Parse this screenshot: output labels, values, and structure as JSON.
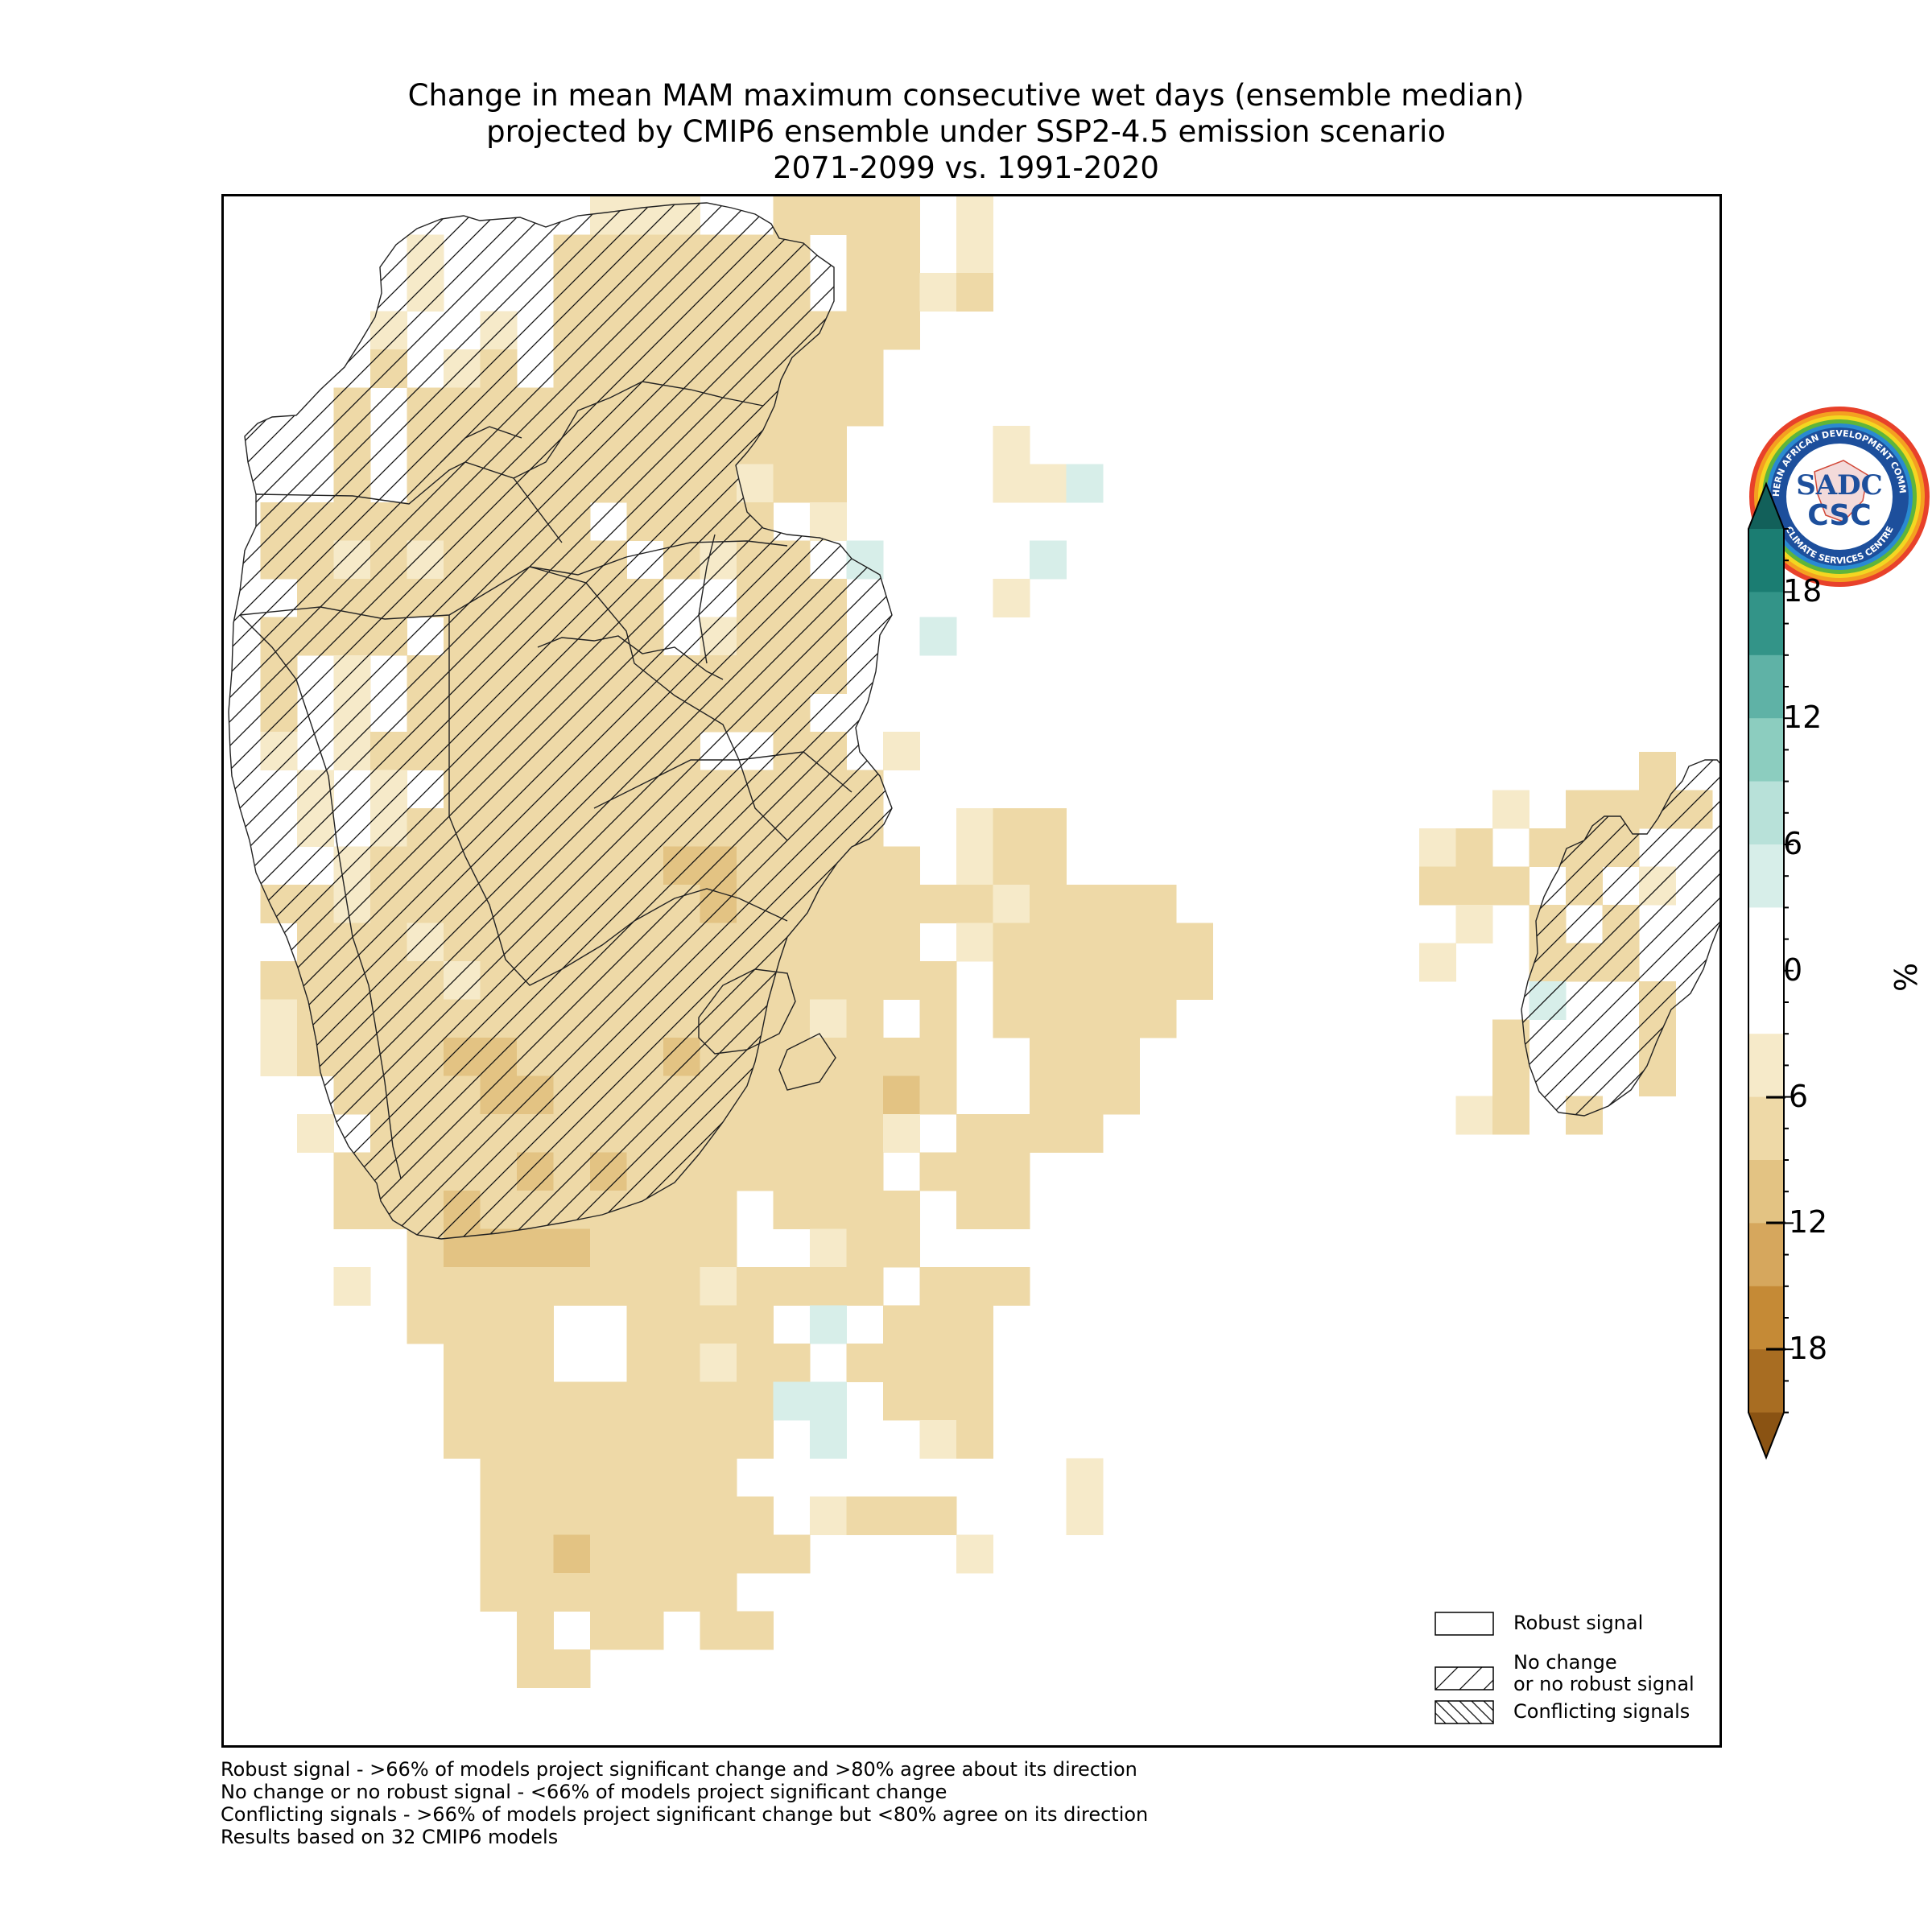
{
  "title": {
    "line1": "Change in mean MAM maximum consecutive wet days (ensemble median)",
    "line2": "projected by CMIP6 ensemble under SSP2-4.5 emission scenario",
    "line3": "2071-2099 vs. 1991-2020"
  },
  "logo": {
    "top_text": "SOUTHERN AFRICAN DEVELOPMENT COMMUNITY",
    "bottom_text": "CLIMATE SERVICES CENTRE",
    "mark_top": "SADC",
    "mark_bottom": "CSC",
    "ring_color": "#e8412a",
    "inner_color": "#1d4f9c"
  },
  "colorbar": {
    "unit": "%",
    "ticks": [
      "18",
      "12",
      "6",
      "0",
      "−6",
      "−12",
      "−18"
    ],
    "colors_top_to_bottom": [
      "#1b7d72",
      "#339488",
      "#5fb2a6",
      "#8ccdbf",
      "#b8e1d9",
      "#d7eee9",
      "#ffffff",
      "#ffffff",
      "#f6eac9",
      "#eed9a7",
      "#e3c383",
      "#d6a75d",
      "#c58a36",
      "#a86d22"
    ],
    "over_color": "#12605a",
    "under_color": "#8a5313"
  },
  "legend": {
    "robust": "Robust signal",
    "no_change_1": "No change",
    "no_change_2": "or no robust signal",
    "conflicting": "Conflicting signals"
  },
  "footnotes": [
    "Robust signal - >66% of models project significant change and >80% agree about its direction",
    "No change or no robust signal - <66% of models project significant change",
    "Conflicting signals - >66% of models project significant change but <80% agree on its direction",
    "Results based on 32 CMIP6 models"
  ],
  "map_data": {
    "variable": "Change in mean MAM maximum consecutive wet days",
    "unit": "%",
    "value_classes": {
      "drying_1": -4.5,
      "drying_2": -7.5,
      "drying_3": -10.5,
      "drying_4": -13.5,
      "wetting_1": 4.5
    },
    "colors": {
      "drying_1": "#f6eac9",
      "drying_2": "#eed9a7",
      "drying_3": "#e3c383",
      "drying_4": "#d6a75d",
      "wetting_1": "#d7eee9"
    }
  }
}
